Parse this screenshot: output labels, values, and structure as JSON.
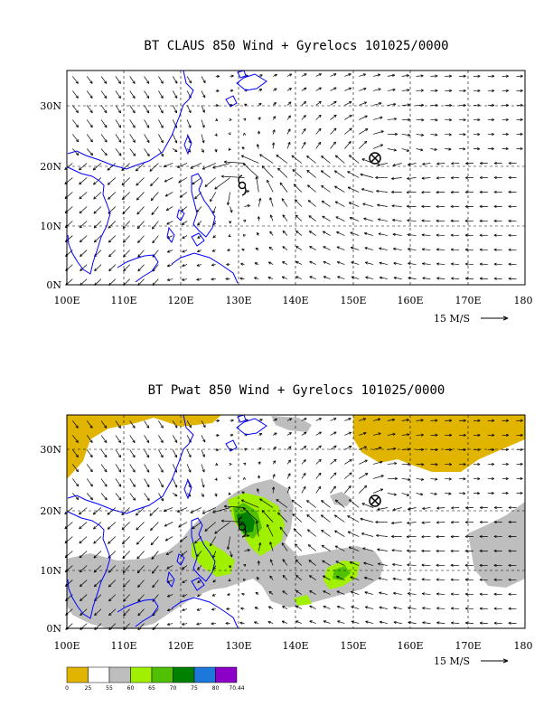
{
  "panels": [
    {
      "title": "BT CLAUS 850 Wind + Gyrelocs 101025/0000",
      "y_ticks": [
        "30N",
        "20N",
        "10N",
        "0N"
      ],
      "x_ticks": [
        "100E",
        "110E",
        "120E",
        "130E",
        "140E",
        "150E",
        "160E",
        "170E",
        "180"
      ],
      "vector_ref": "15 M/S"
    },
    {
      "title": "BT Pwat 850 Wind + Gyrelocs 101025/0000",
      "y_ticks": [
        "30N",
        "20N",
        "10N",
        "0N"
      ],
      "x_ticks": [
        "100E",
        "110E",
        "120E",
        "130E",
        "140E",
        "150E",
        "160E",
        "170E",
        "180"
      ],
      "vector_ref": "15 M/S"
    }
  ],
  "legend": {
    "labels": [
      "0",
      "25",
      "55",
      "60",
      "65",
      "70",
      "75",
      "80",
      "70.44"
    ],
    "colors": [
      "#e1b400",
      "#ffffff",
      "#bebebe",
      "#a0f000",
      "#50c000",
      "#008000",
      "#1e78dc",
      "#8c00c8"
    ]
  },
  "colors": {
    "coast": "#0000ff",
    "grid": "#000000",
    "vector": "#000000"
  },
  "markers": {
    "gyre_symbol": "circled-x",
    "cyclone_symbol": "tropical-cyclone"
  }
}
